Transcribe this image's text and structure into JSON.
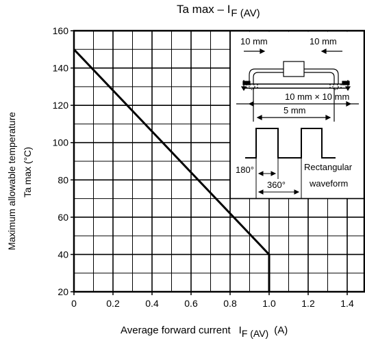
{
  "chart_data": {
    "type": "line",
    "title": "Ta max – I",
    "title_sub": "F (AV)",
    "ylabel_line1": "Maximum allowable temperature",
    "ylabel_line2": "Ta max    (°C)",
    "xlabel_main": "Average forward current",
    "xlabel_symbol": "I",
    "xlabel_sub": "F (AV)",
    "xlabel_unit": "(A)",
    "xlim": [
      0,
      1.5
    ],
    "ylim": [
      20,
      160
    ],
    "x_ticks": [
      0,
      0.2,
      0.4,
      0.6,
      0.8,
      1.0,
      1.2,
      1.4
    ],
    "x_tick_labels": [
      "0",
      "0.2",
      "0.4",
      "0.6",
      "0.8",
      "1.0",
      "1.2",
      "1.4"
    ],
    "y_ticks": [
      20,
      40,
      60,
      80,
      100,
      120,
      140,
      160
    ],
    "y_tick_labels": [
      "20",
      "40",
      "60",
      "80",
      "100",
      "120",
      "140",
      "160"
    ],
    "grid": true,
    "x_minor_step": 0.1,
    "y_minor_step": 10,
    "series": [
      {
        "x": [
          0,
          1.0,
          1.0
        ],
        "y": [
          150,
          40,
          20
        ]
      }
    ],
    "inset": {
      "dim_10mm_left": "10 mm",
      "dim_10mm_right": "10 mm",
      "dim_pad": "10 mm × 10 mm",
      "dim_5mm": "5 mm",
      "angle_180": "180°",
      "angle_360": "360°",
      "waveform_line1": "Rectangular",
      "waveform_line2": "waveform"
    }
  }
}
